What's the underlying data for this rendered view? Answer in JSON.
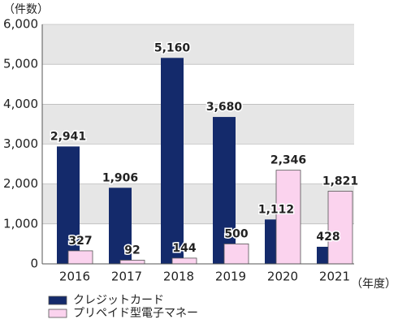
{
  "chart_data": {
    "type": "bar",
    "y_unit": "（件数）",
    "x_unit": "（年度）",
    "categories": [
      "2016",
      "2017",
      "2018",
      "2019",
      "2020",
      "2021"
    ],
    "series": [
      {
        "name": "クレジットカード",
        "color": "#142a6b",
        "values": [
          2941,
          1906,
          5160,
          3680,
          1112,
          428
        ],
        "value_labels": [
          "2,941",
          "1,906",
          "5,160",
          "3,680",
          "1,112",
          "428"
        ]
      },
      {
        "name": "プリペイド型電子マネー",
        "color": "#fbd3ee",
        "values": [
          327,
          92,
          144,
          500,
          2346,
          1821
        ],
        "value_labels": [
          "327",
          "92",
          "144",
          "500",
          "2,346",
          "1,821"
        ]
      }
    ],
    "ylim": [
      0,
      6000
    ],
    "yticks": [
      0,
      {
        "value": 1000,
        "label": "1,000"
      },
      {
        "value": 2000,
        "label": "2,000"
      },
      {
        "value": 3000,
        "label": "3,000"
      },
      {
        "value": 4000,
        "label": "4,000"
      },
      {
        "value": 5000,
        "label": "5,000"
      },
      {
        "value": 6000,
        "label": "6,000"
      }
    ],
    "grid": true,
    "legend": "bottom-left"
  }
}
